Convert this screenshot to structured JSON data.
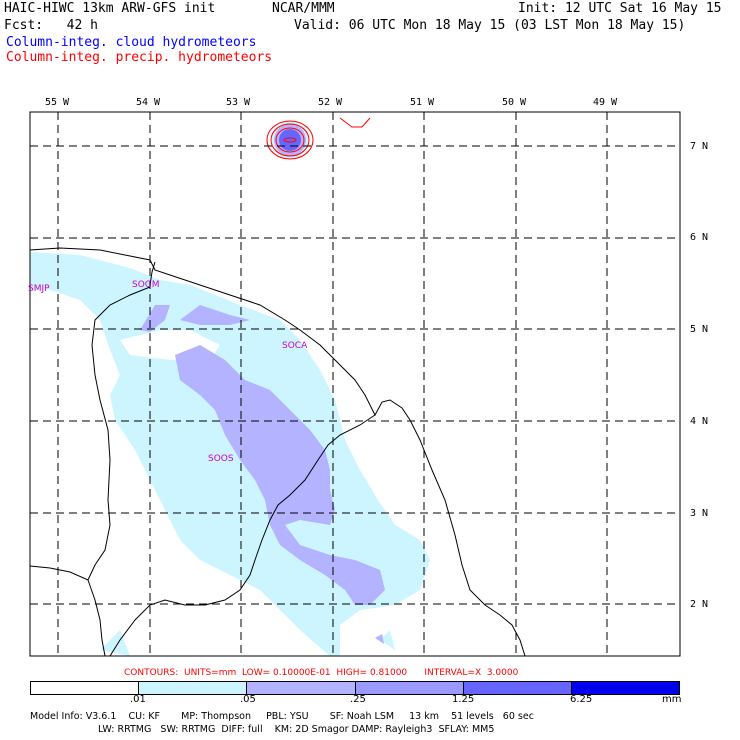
{
  "header": {
    "model": "HAIC-HIWC 13km ARW-GFS init",
    "org": "NCAR/MMM",
    "init": "Init: 12 UTC Sat 16 May 15",
    "fcst": "Fcst:   42 h",
    "valid": "Valid: 06 UTC Mon 18 May 15 (03 LST Mon 18 May 15)",
    "field_cloud": "Column-integ. cloud hydrometeors",
    "field_precip": "Column-integ. precip. hydrometeors",
    "cloud_color": "#0000ff",
    "precip_color": "#ff0000"
  },
  "axes": {
    "lon_labels": [
      "55 W",
      "54 W",
      "53 W",
      "52 W",
      "51 W",
      "50 W",
      "49 W"
    ],
    "lat_labels": [
      "7 N",
      "6 N",
      "5 N",
      "4 N",
      "3 N",
      "2 N"
    ]
  },
  "stations": [
    "SMJP",
    "SOGM",
    "SOCA",
    "SOOS"
  ],
  "contours_line": "CONTOURS:  UNITS=mm  LOW= 0.10000E-01  HIGH= 0.81000      INTERVAL=X  3.0000",
  "colorbar": {
    "levels": [
      ".01",
      ".05",
      ".25",
      "1.25",
      "6.25"
    ],
    "units": "mm",
    "colors": [
      "#ffffff",
      "#ccf5ff",
      "#b3b3ff",
      "#9999ff",
      "#6666ff",
      "#3333ff",
      "#0000ee"
    ]
  },
  "model_info": {
    "line1": "Model Info: V3.6.1    CU: KF       MP: Thompson     PBL: YSU       SF: Noah LSM     13 km    51 levels   60 sec",
    "line2": "LW: RRTMG   SW: RRTMG  DIFF: full    KM: 2D Smagor DAMP: Rayleigh3  SFLAY: MM5"
  }
}
